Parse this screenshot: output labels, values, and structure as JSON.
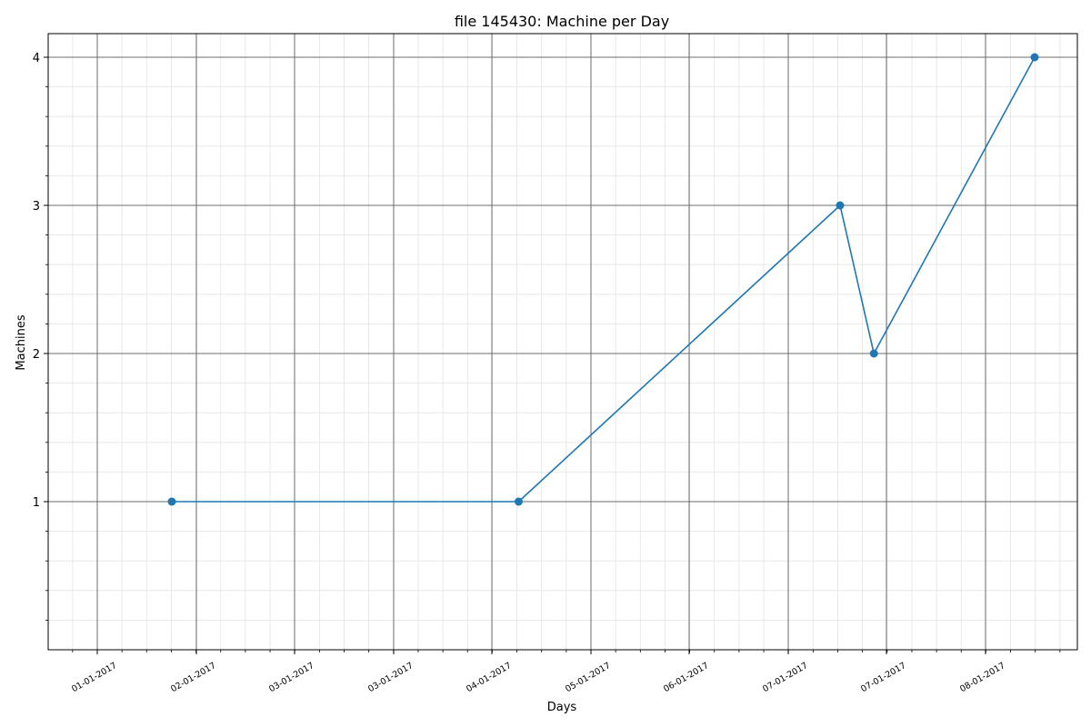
{
  "chart_data": {
    "type": "line",
    "title": "file 145430: Machine per Day",
    "xlabel": "Days",
    "ylabel": "Machines",
    "x_tick_labels": [
      "01-01-2017",
      "02-01-2017",
      "03-01-2017",
      "03-01-2017",
      "04-01-2017",
      "05-01-2017",
      "06-01-2017",
      "07-01-2017",
      "07-01-2017",
      "08-01-2017"
    ],
    "y_ticks": [
      1,
      2,
      3,
      4
    ],
    "ylim": [
      0,
      4.15
    ],
    "grid": true,
    "x_scale": "date",
    "series": [
      {
        "color": "#1f77b4",
        "marker": "circle",
        "points": [
          {
            "x": "2017-01-23",
            "y": 1
          },
          {
            "x": "2017-04-15",
            "y": 1
          },
          {
            "x": "2017-06-30",
            "y": 3
          },
          {
            "x": "2017-07-08",
            "y": 2
          },
          {
            "x": "2017-08-15",
            "y": 4
          }
        ]
      }
    ]
  }
}
